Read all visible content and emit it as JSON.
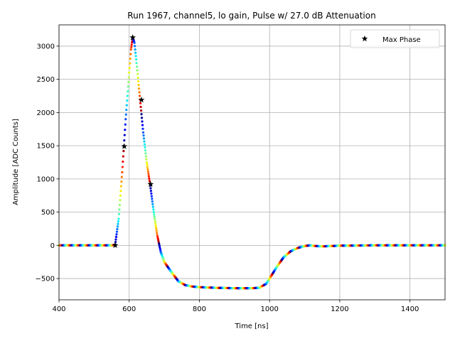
{
  "chart_data": {
    "type": "scatter",
    "title": "Run 1967, channel5, lo gain, Pulse w/ 27.0 dB Attenuation",
    "xlabel": "Time [ns]",
    "ylabel": "Amplitude [ADC Counts]",
    "xlim": [
      400,
      1500
    ],
    "ylim": [
      -820,
      3320
    ],
    "xticks": [
      400,
      600,
      800,
      1000,
      1200,
      1400
    ],
    "yticks": [
      -500,
      0,
      500,
      1000,
      1500,
      2000,
      2500,
      3000
    ],
    "grid": true,
    "legend": {
      "placement": "top-right",
      "entries": [
        "Max Phase"
      ]
    },
    "colormap": "jet",
    "pulse_curve": {
      "x": [
        400,
        550,
        560,
        570,
        580,
        590,
        600,
        605,
        610,
        615,
        620,
        630,
        640,
        650,
        660,
        670,
        680,
        690,
        700,
        720,
        740,
        760,
        780,
        800,
        850,
        900,
        950,
        970,
        990,
        1000,
        1020,
        1040,
        1060,
        1080,
        1100,
        1115,
        1130,
        1150,
        1200,
        1300,
        1500
      ],
      "y": [
        0,
        0,
        10,
        400,
        1100,
        1900,
        2600,
        2950,
        3130,
        3050,
        2800,
        2250,
        1700,
        1250,
        900,
        500,
        150,
        -100,
        -250,
        -400,
        -540,
        -600,
        -620,
        -630,
        -640,
        -645,
        -645,
        -640,
        -580,
        -500,
        -330,
        -180,
        -90,
        -40,
        -10,
        0,
        -10,
        -15,
        -5,
        0,
        0
      ]
    },
    "max_phase_points": [
      {
        "x": 560,
        "y": 0
      },
      {
        "x": 586,
        "y": 1490
      },
      {
        "x": 610,
        "y": 3130
      },
      {
        "x": 635,
        "y": 2190
      },
      {
        "x": 661,
        "y": 920
      }
    ]
  }
}
